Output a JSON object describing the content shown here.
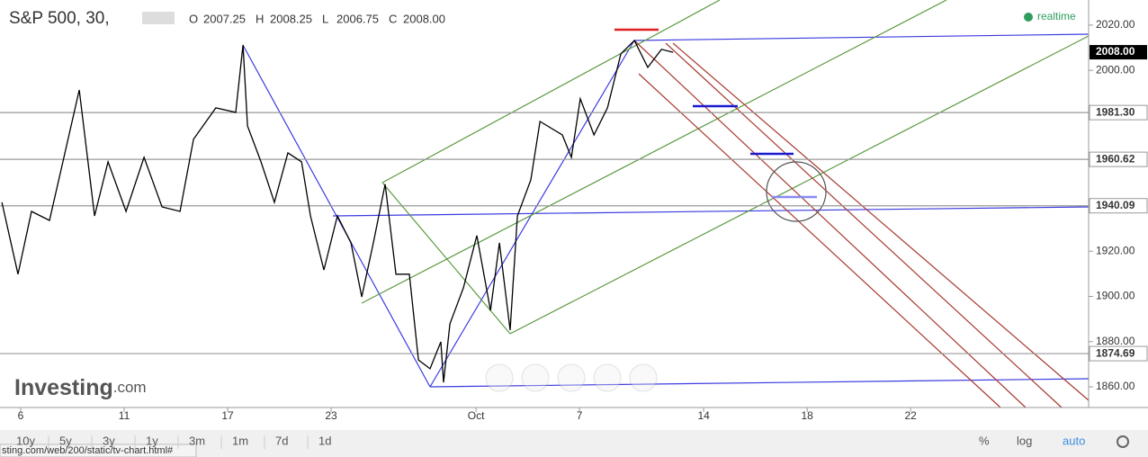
{
  "chart_data": {
    "type": "line",
    "title": "S&P 500, 30,",
    "ohlc": [
      [
        "O",
        "2007.25"
      ],
      [
        "H",
        "2008.25"
      ],
      [
        "L",
        "2006.75"
      ],
      [
        "C",
        "2008.00"
      ]
    ],
    "status": "realtime",
    "brand": [
      "Investing",
      ".com"
    ],
    "series": [
      {
        "name": "S&P 500",
        "color": "#000000",
        "x": [
          -0.91,
          -0.13,
          0.52,
          1.39,
          2.04,
          2.83,
          3.57,
          4.22,
          5.09,
          5.96,
          6.83,
          7.7,
          8.35,
          9.43,
          10.39,
          10.74,
          10.96,
          11.61,
          12.26,
          12.91,
          13.57,
          14.0,
          14.65,
          15.3,
          15.96,
          16.48,
          17.04,
          17.61,
          18.13,
          18.78,
          19.22,
          19.78,
          20.3,
          20.43,
          20.74,
          21.39,
          22.04,
          22.7,
          23.13,
          23.65,
          24.0,
          24.65,
          25.09,
          26.17,
          26.61,
          27.04,
          27.7,
          28.35,
          29.0,
          29.65,
          30.3,
          30.96,
          31.52
        ],
        "values": [
          1941.6,
          1909.8,
          1937.6,
          1933.6,
          1959.5,
          1991.3,
          1935.6,
          1959.5,
          1937.6,
          1961.5,
          1939.6,
          1937.6,
          1969.5,
          1983.4,
          1981.4,
          2011.2,
          1975.4,
          1959.5,
          1941.6,
          1963.5,
          1959.5,
          1935.6,
          1911.7,
          1935.6,
          1923.7,
          1899.8,
          1923.7,
          1949.6,
          1909.8,
          1909.8,
          1871.9,
          1868.0,
          1879.9,
          1862.0,
          1887.9,
          1903.8,
          1926.9,
          1893.8,
          1923.7,
          1885.1,
          1935.6,
          1951.5,
          1977.4,
          1971.4,
          1961.5,
          1987.4,
          1971.4,
          1983.4,
          2007.3,
          2013.2,
          2001.3,
          2009.3,
          2008.0
        ]
      }
    ],
    "xlim": [
      -1,
      51.6
    ],
    "xticks": [
      {
        "value": 0,
        "label": "6"
      },
      {
        "value": 5,
        "label": "11"
      },
      {
        "value": 10,
        "label": "17"
      },
      {
        "value": 15,
        "label": "23"
      },
      {
        "value": 22,
        "label": "Oct"
      },
      {
        "value": 27,
        "label": "7"
      },
      {
        "value": 33,
        "label": "14"
      },
      {
        "value": 38,
        "label": "18"
      },
      {
        "value": 43,
        "label": "22"
      }
    ],
    "ylim": [
      1850.85,
      2031.1
    ],
    "yticks": [
      {
        "value": 1860,
        "label": "1860.00"
      },
      {
        "value": 1880,
        "label": "1880.00"
      },
      {
        "value": 1900,
        "label": "1900.00"
      },
      {
        "value": 1920,
        "label": "1920.00"
      },
      {
        "value": 1940,
        "label": "1940.00"
      },
      {
        "value": 1960,
        "label": "1960.00"
      },
      {
        "value": 1980,
        "label": "1980.00"
      },
      {
        "value": 2000,
        "label": "2000.00"
      },
      {
        "value": 2020,
        "label": "2020.00"
      }
    ],
    "price_levels": [
      {
        "value": 1981.3,
        "label": "1981.30"
      },
      {
        "value": 1960.62,
        "label": "1960.62"
      },
      {
        "value": 1940.09,
        "label": "1940.09"
      },
      {
        "value": 1874.69,
        "label": "1874.69"
      }
    ],
    "last_price": {
      "value": 2008,
      "label": "2008.00"
    },
    "toolbar": [
      "10y",
      "5y",
      "3y",
      "1y",
      "3m",
      "1m",
      "7d",
      "1d"
    ],
    "toolbar_right": [
      "%",
      "log",
      "auto"
    ],
    "url": "sting.com/web/200/static/tv-chart.html#"
  }
}
